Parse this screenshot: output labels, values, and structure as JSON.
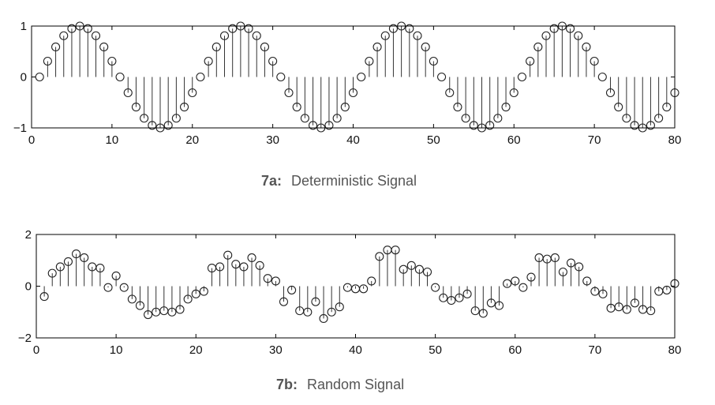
{
  "chart_data": [
    {
      "type": "stem",
      "caption_tag": "7a:",
      "caption_text": "Deterministic Signal",
      "xlim": [
        0,
        80
      ],
      "ylim": [
        -1,
        1
      ],
      "xticks": [
        "0",
        "10",
        "20",
        "30",
        "40",
        "50",
        "60",
        "70",
        "80"
      ],
      "yticks": [
        "1",
        "0",
        "−1"
      ],
      "grid": false,
      "x": [
        1,
        2,
        3,
        4,
        5,
        6,
        7,
        8,
        9,
        10,
        11,
        12,
        13,
        14,
        15,
        16,
        17,
        18,
        19,
        20,
        21,
        22,
        23,
        24,
        25,
        26,
        27,
        28,
        29,
        30,
        31,
        32,
        33,
        34,
        35,
        36,
        37,
        38,
        39,
        40,
        41,
        42,
        43,
        44,
        45,
        46,
        47,
        48,
        49,
        50,
        51,
        52,
        53,
        54,
        55,
        56,
        57,
        58,
        59,
        60,
        61,
        62,
        63,
        64,
        65,
        66,
        67,
        68,
        69,
        70,
        71,
        72,
        73,
        74,
        75,
        76,
        77,
        78,
        79,
        80
      ],
      "y": [
        0,
        0.31,
        0.59,
        0.81,
        0.95,
        1,
        0.95,
        0.81,
        0.59,
        0.31,
        0,
        -0.31,
        -0.59,
        -0.81,
        -0.95,
        -1,
        -0.95,
        -0.81,
        -0.59,
        -0.31,
        0,
        0.31,
        0.59,
        0.81,
        0.95,
        1,
        0.95,
        0.81,
        0.59,
        0.31,
        0,
        -0.31,
        -0.59,
        -0.81,
        -0.95,
        -1,
        -0.95,
        -0.81,
        -0.59,
        -0.31,
        0,
        0.31,
        0.59,
        0.81,
        0.95,
        1,
        0.95,
        0.81,
        0.59,
        0.31,
        0,
        -0.31,
        -0.59,
        -0.81,
        -0.95,
        -1,
        -0.95,
        -0.81,
        -0.59,
        -0.31,
        0,
        0.31,
        0.59,
        0.81,
        0.95,
        1,
        0.95,
        0.81,
        0.59,
        0.31,
        0,
        -0.31,
        -0.59,
        -0.81,
        -0.95,
        -1,
        -0.95,
        -0.81,
        -0.59,
        -0.31
      ]
    },
    {
      "type": "stem",
      "caption_tag": "7b:",
      "caption_text": "Random Signal",
      "xlim": [
        0,
        80
      ],
      "ylim": [
        -2,
        2
      ],
      "xticks": [
        "0",
        "10",
        "20",
        "30",
        "40",
        "50",
        "60",
        "70",
        "80"
      ],
      "yticks": [
        "2",
        "0",
        "−2"
      ],
      "grid": false,
      "x": [
        1,
        2,
        3,
        4,
        5,
        6,
        7,
        8,
        9,
        10,
        11,
        12,
        13,
        14,
        15,
        16,
        17,
        18,
        19,
        20,
        21,
        22,
        23,
        24,
        25,
        26,
        27,
        28,
        29,
        30,
        31,
        32,
        33,
        34,
        35,
        36,
        37,
        38,
        39,
        40,
        41,
        42,
        43,
        44,
        45,
        46,
        47,
        48,
        49,
        50,
        51,
        52,
        53,
        54,
        55,
        56,
        57,
        58,
        59,
        60,
        61,
        62,
        63,
        64,
        65,
        66,
        67,
        68,
        69,
        70,
        71,
        72,
        73,
        74,
        75,
        76,
        77,
        78,
        79,
        80
      ],
      "y": [
        -0.4,
        0.5,
        0.75,
        0.95,
        1.25,
        1.1,
        0.75,
        0.7,
        -0.05,
        0.4,
        -0.05,
        -0.5,
        -0.75,
        -1.1,
        -1.0,
        -0.95,
        -1.0,
        -0.9,
        -0.5,
        -0.3,
        -0.2,
        0.7,
        0.75,
        1.2,
        0.85,
        0.75,
        1.1,
        0.8,
        0.3,
        0.2,
        -0.6,
        -0.15,
        -0.95,
        -1.0,
        -0.6,
        -1.25,
        -1.0,
        -0.8,
        -0.05,
        -0.1,
        -0.1,
        0.2,
        1.15,
        1.4,
        1.4,
        0.65,
        0.8,
        0.65,
        0.55,
        -0.05,
        -0.45,
        -0.55,
        -0.45,
        -0.3,
        -0.95,
        -1.05,
        -0.65,
        -0.75,
        0.1,
        0.2,
        -0.05,
        0.35,
        1.1,
        1.05,
        1.1,
        0.55,
        0.9,
        0.75,
        0.2,
        -0.2,
        -0.3,
        -0.85,
        -0.8,
        -0.9,
        -0.65,
        -0.9,
        -0.95,
        -0.2,
        -0.15,
        0.1
      ]
    }
  ]
}
